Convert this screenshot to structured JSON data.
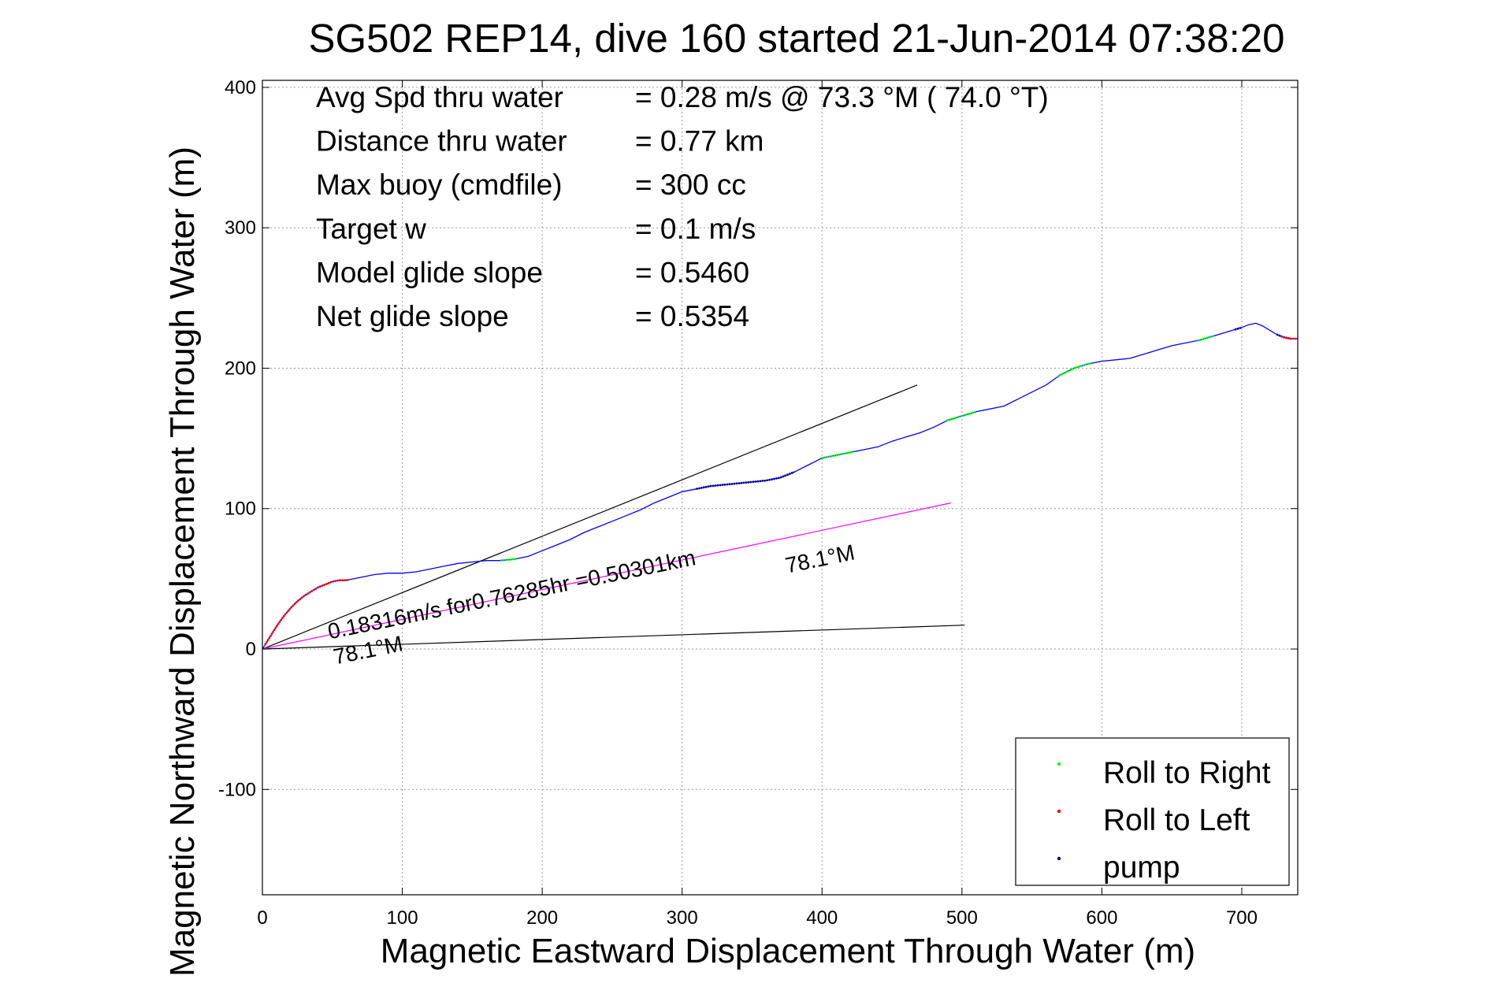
{
  "chart_data": {
    "type": "line",
    "title": "SG502 REP14, dive 160 started 21-Jun-2014 07:38:20",
    "xlabel": "Magnetic Eastward Displacement Through Water (m)",
    "ylabel": "Magnetic Northward Displacement Through Water (m)",
    "xlim": [
      0,
      740
    ],
    "ylim": [
      -175,
      405
    ],
    "xticks": [
      0,
      100,
      200,
      300,
      400,
      500,
      600,
      700
    ],
    "yticks": [
      -100,
      0,
      100,
      200,
      300,
      400
    ],
    "grid": true,
    "legend_position": "bottom-right",
    "stats": [
      {
        "label": "Avg Spd thru water",
        "value": "=  0.28 m/s @  73.3 °M ( 74.0 °T)"
      },
      {
        "label": "Distance thru water",
        "value": "=  0.77 km"
      },
      {
        "label": "Max buoy (cmdfile)",
        "value": "= 300 cc"
      },
      {
        "label": "Target w",
        "value": "= 0.1 m/s"
      },
      {
        "label": "Model glide slope",
        "value": "= 0.5460"
      },
      {
        "label": "Net glide slope",
        "value": "= 0.5354"
      }
    ],
    "track": {
      "color": "#0000ff",
      "x": [
        0,
        5,
        10,
        15,
        20,
        25,
        30,
        35,
        40,
        45,
        50,
        55,
        60,
        65,
        70,
        80,
        90,
        100,
        110,
        120,
        130,
        140,
        150,
        160,
        170,
        180,
        190,
        200,
        210,
        220,
        230,
        240,
        250,
        260,
        270,
        280,
        290,
        300,
        310,
        320,
        330,
        340,
        350,
        360,
        370,
        380,
        390,
        400,
        410,
        420,
        430,
        440,
        450,
        460,
        470,
        480,
        490,
        500,
        510,
        520,
        530,
        540,
        550,
        560,
        570,
        580,
        590,
        600,
        610,
        620,
        630,
        640,
        650,
        660,
        670,
        680,
        690,
        700,
        705,
        710,
        715,
        720,
        725,
        730,
        735,
        740
      ],
      "y": [
        0,
        8,
        16,
        23,
        29,
        34,
        38,
        41,
        44,
        46,
        48,
        49,
        49,
        50,
        51,
        53,
        54,
        54,
        55,
        57,
        59,
        61,
        62,
        63,
        63,
        64,
        66,
        70,
        74,
        78,
        83,
        87,
        91,
        95,
        99,
        104,
        108,
        112,
        114,
        116,
        117,
        118,
        119,
        120,
        122,
        126,
        131,
        136,
        138,
        140,
        142,
        144,
        148,
        151,
        154,
        158,
        163,
        166,
        169,
        171,
        173,
        178,
        183,
        188,
        195,
        200,
        203,
        205,
        206,
        207,
        210,
        213,
        216,
        218,
        220,
        223,
        226,
        229,
        231,
        232,
        230,
        227,
        224,
        222,
        221,
        221
      ]
    },
    "segments": [
      {
        "kind": "Roll to Left",
        "color": "#ff0000",
        "x_range": [
          2,
          62
        ]
      },
      {
        "kind": "Roll to Right",
        "color": "#00ff00",
        "x_range": [
          170,
          182
        ]
      },
      {
        "kind": "pump",
        "color": "#000080",
        "x_range": [
          310,
          380
        ]
      },
      {
        "kind": "Roll to Right",
        "color": "#00ff00",
        "x_range": [
          400,
          422
        ]
      },
      {
        "kind": "Roll to Right",
        "color": "#00ff00",
        "x_range": [
          488,
          510
        ]
      },
      {
        "kind": "Roll to Right",
        "color": "#00ff00",
        "x_range": [
          568,
          592
        ]
      },
      {
        "kind": "Roll to Right",
        "color": "#00ff00",
        "x_range": [
          668,
          680
        ]
      },
      {
        "kind": "pump",
        "color": "#000080",
        "x_range": [
          695,
          700
        ]
      },
      {
        "kind": "pump",
        "color": "#000080",
        "x_range": [
          725,
          735
        ]
      },
      {
        "kind": "Roll to Left",
        "color": "#ff0000",
        "x_range": [
          728,
          740
        ]
      }
    ],
    "reference_lines": [
      {
        "color": "#000000",
        "x": [
          0,
          468
        ],
        "y": [
          0,
          188
        ]
      },
      {
        "color": "#000000",
        "x": [
          0,
          502
        ],
        "y": [
          0,
          17
        ]
      },
      {
        "color": "#ff00ff",
        "x": [
          0,
          492
        ],
        "y": [
          0,
          104
        ]
      }
    ],
    "annotations": [
      {
        "text": "0.18316m/s for0.76285hr =0.50301km",
        "x": 48,
        "y": 7,
        "angle": 11.5,
        "size": 28
      },
      {
        "text": "78.1°M",
        "x": 52,
        "y": -11,
        "angle": 11.5,
        "size": 28
      },
      {
        "text": "78.1°M",
        "x": 375,
        "y": 54,
        "angle": 11.5,
        "size": 28
      }
    ],
    "legend": [
      {
        "label": "Roll to Right",
        "color": "#00ff00"
      },
      {
        "label": "Roll to Left",
        "color": "#ff0000"
      },
      {
        "label": "pump",
        "color": "#000080"
      }
    ]
  }
}
